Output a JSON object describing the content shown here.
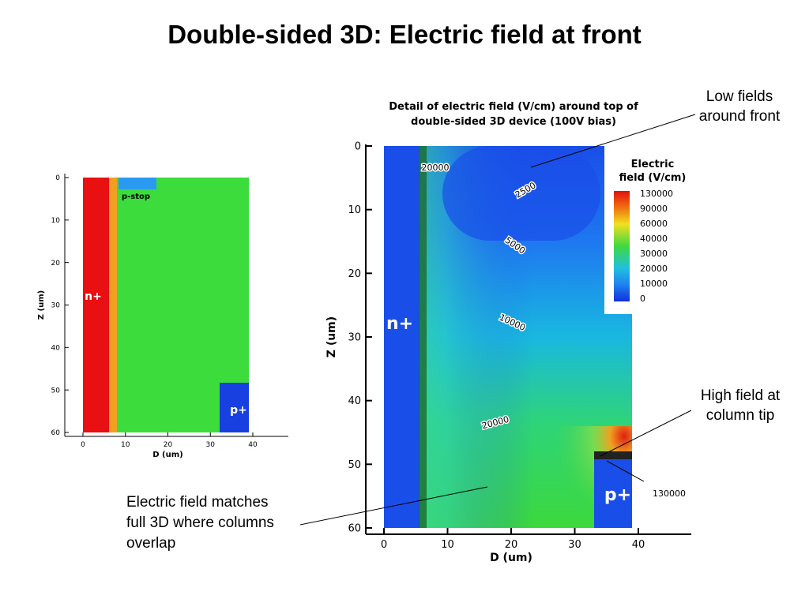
{
  "title": "Double-sided 3D: Electric field at front",
  "left_plot": {
    "x_label": "D (um)",
    "y_label": "Z (um)",
    "xticks": [
      0,
      10,
      20,
      30,
      40
    ],
    "yticks": [
      0,
      10,
      20,
      30,
      40,
      50,
      60
    ],
    "regions": [
      "n+",
      "p-stop",
      "p+"
    ]
  },
  "right_plot": {
    "title": [
      "Detail of electric field (V/cm) around top of",
      "double-sided 3D device (100V bias)"
    ],
    "x_label": "D (um)",
    "y_label": "Z (um)",
    "xticks": [
      0,
      10,
      20,
      30,
      40
    ],
    "yticks": [
      0,
      10,
      20,
      30,
      40,
      50,
      60
    ],
    "regions": [
      "n+",
      "p+"
    ],
    "contour_labels": [
      20000,
      2500,
      5000,
      10000,
      20000,
      130000
    ]
  },
  "legend": {
    "title": [
      "Electric",
      "field (V/cm)"
    ],
    "levels": [
      130000,
      90000,
      60000,
      40000,
      30000,
      20000,
      10000,
      0
    ]
  },
  "annotations": {
    "low_fields": [
      "Low fields",
      "around front"
    ],
    "high_field": [
      "High field at",
      "column tip"
    ],
    "matches": [
      "Electric field matches",
      "full 3D where columns",
      "overlap"
    ]
  }
}
